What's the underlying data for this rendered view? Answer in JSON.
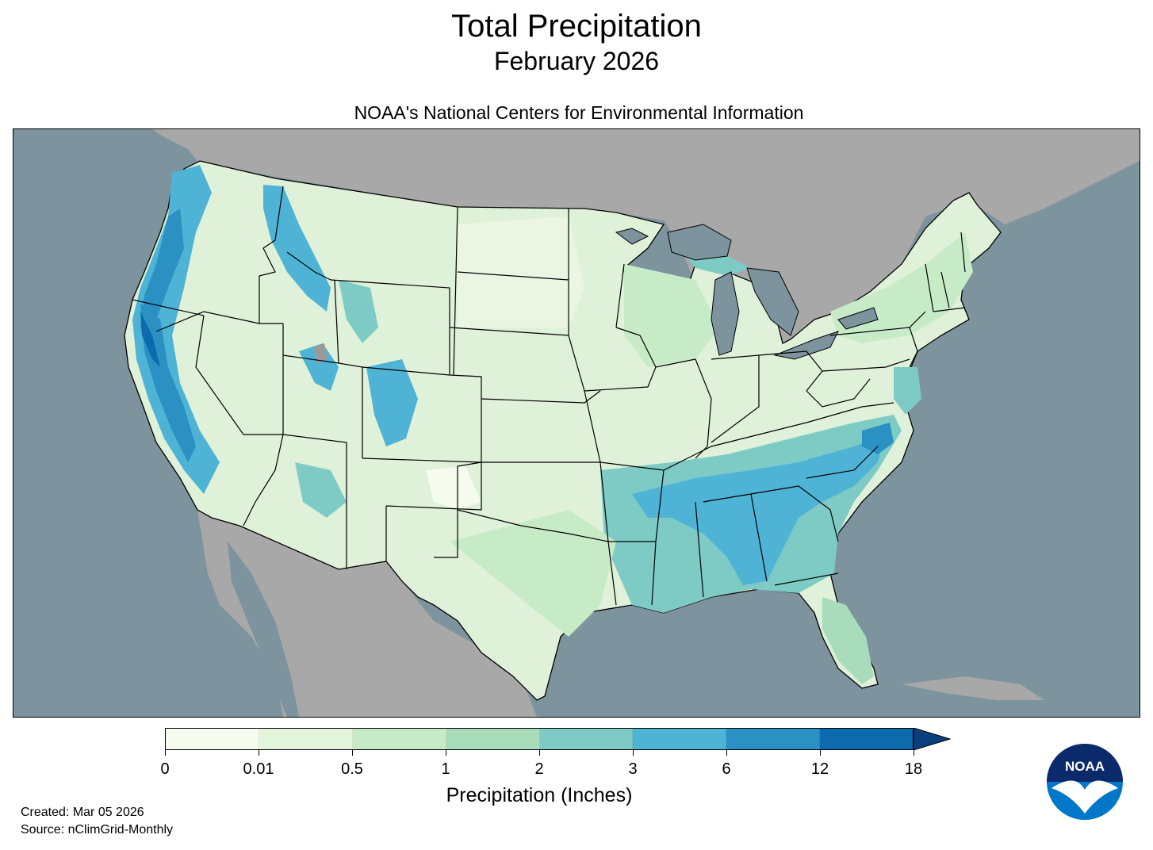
{
  "header": {
    "title": "Total Precipitation",
    "subtitle": "February 2026",
    "agency": "NOAA's National Centers for Environmental Information"
  },
  "map": {
    "ocean_color": "#7d939d",
    "land_outside_color": "#a8a8a8",
    "lake_color": "#7d939d",
    "border_color": "#000000"
  },
  "legend": {
    "title": "Precipitation (Inches)",
    "ticks": [
      "0",
      "0.01",
      "0.5",
      "1",
      "2",
      "3",
      "6",
      "12",
      "18"
    ],
    "colors": [
      "#f5fbee",
      "#e3f4dc",
      "#c8ebc7",
      "#a8dcbb",
      "#7ecbc6",
      "#4eb3d5",
      "#2b90c2",
      "#0c6aad",
      "#083f7c"
    ]
  },
  "footer": {
    "created": "Created: Mar 05 2026",
    "source": "Source: nClimGrid-Monthly"
  },
  "logo": {
    "text": "NOAA"
  }
}
